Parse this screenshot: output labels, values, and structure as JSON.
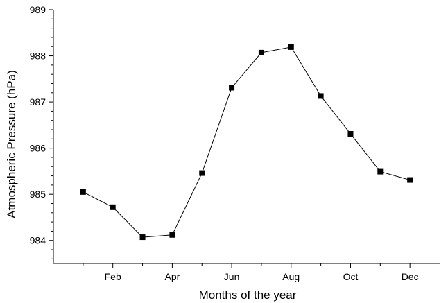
{
  "chart_data": {
    "type": "line",
    "title": "",
    "xlabel": "Months of the year",
    "ylabel": "Atmospheric Pressure (hPa)",
    "x": [
      1,
      2,
      3,
      4,
      5,
      6,
      7,
      8,
      9,
      10,
      11,
      12
    ],
    "x_tick_values": [
      2,
      4,
      6,
      8,
      10,
      12
    ],
    "x_tick_labels": [
      "Feb",
      "Apr",
      "Jun",
      "Aug",
      "Oct",
      "Dec"
    ],
    "xlim": [
      0,
      13
    ],
    "ylim": [
      983.5,
      989
    ],
    "y_ticks": [
      984,
      985,
      986,
      987,
      988,
      989
    ],
    "series": [
      {
        "values": [
          985.05,
          984.72,
          984.07,
          984.12,
          985.46,
          987.31,
          988.07,
          988.19,
          987.13,
          986.31,
          985.49,
          985.31
        ],
        "color": "#000000",
        "marker": "square"
      }
    ],
    "grid": false,
    "legend": "none"
  }
}
